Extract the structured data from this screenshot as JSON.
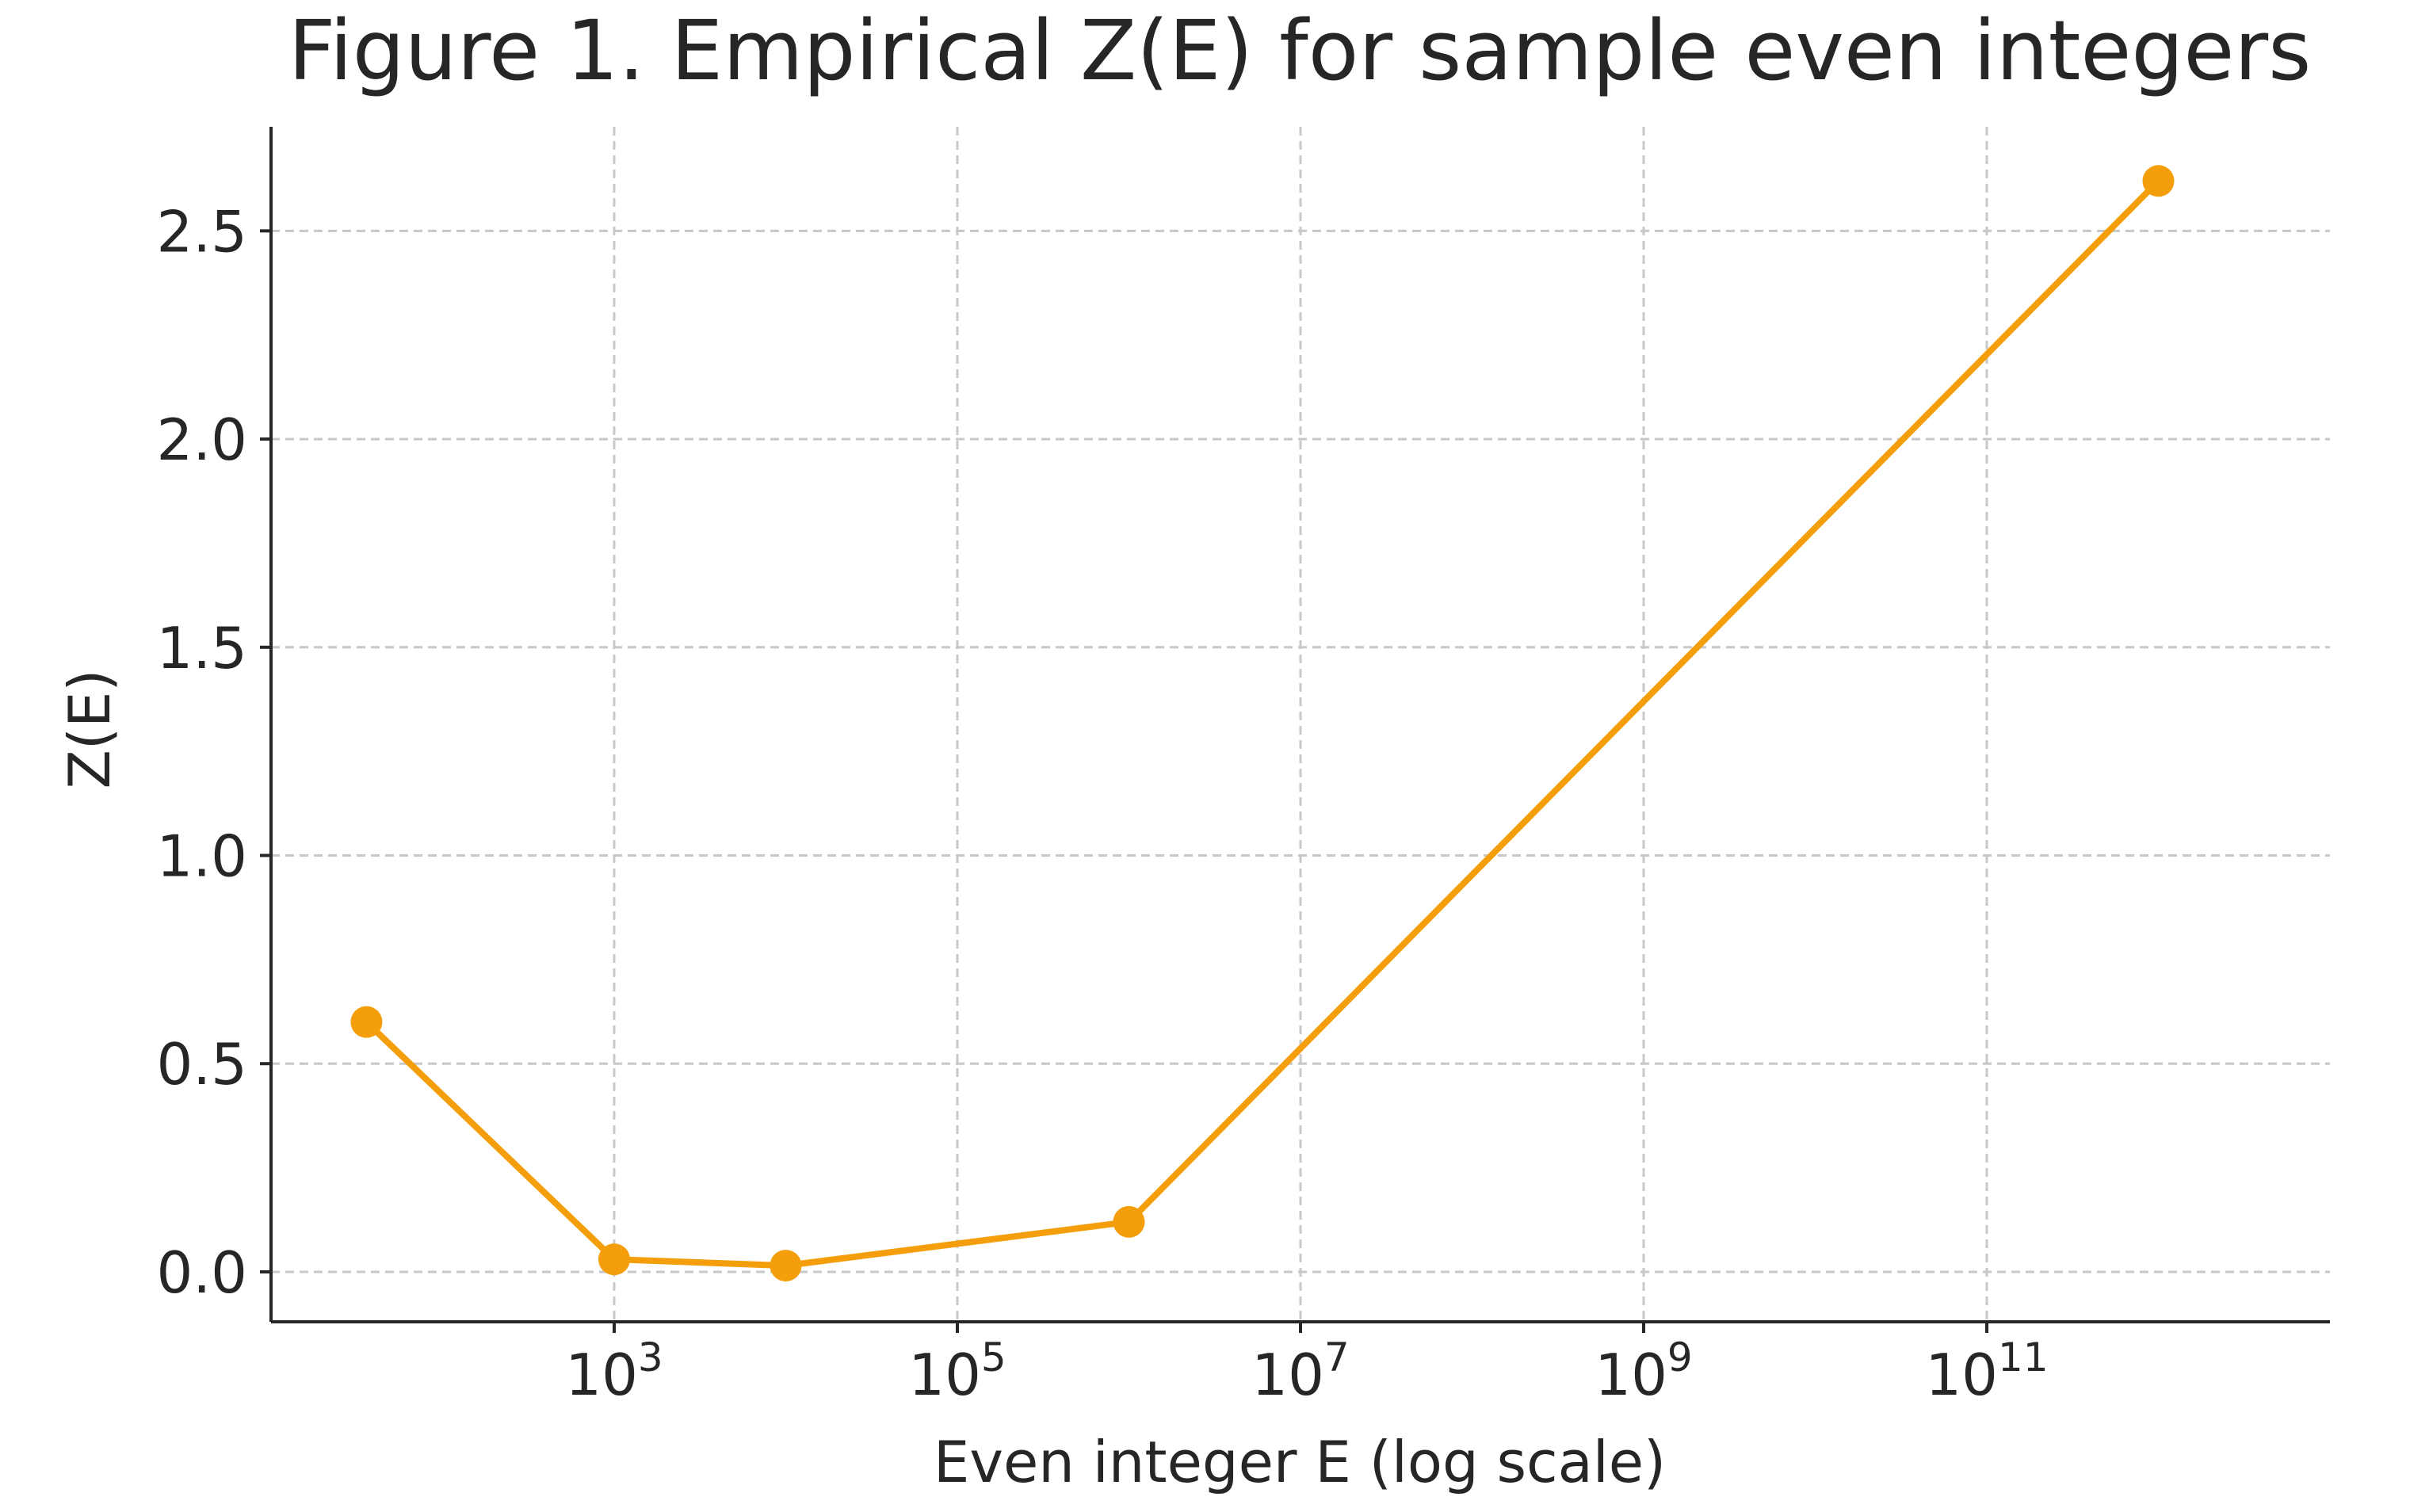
{
  "chart_data": {
    "type": "line",
    "title": "Figure 1. Empirical Z(E) for sample even integers",
    "xlabel": "Even integer E (log scale)",
    "ylabel": "Z(E)",
    "x_scale": "log",
    "xlim": [
      10,
      10000000000000
    ],
    "ylim": [
      -0.12,
      2.75
    ],
    "grid": true,
    "x_ticks": [
      {
        "base": "10",
        "exp": "3",
        "value": 1000
      },
      {
        "base": "10",
        "exp": "5",
        "value": 100000
      },
      {
        "base": "10",
        "exp": "7",
        "value": 10000000
      },
      {
        "base": "10",
        "exp": "9",
        "value": 1000000000
      },
      {
        "base": "10",
        "exp": "11",
        "value": 100000000000
      }
    ],
    "y_ticks": [
      {
        "label": "0.0",
        "value": 0.0
      },
      {
        "label": "0.5",
        "value": 0.5
      },
      {
        "label": "1.0",
        "value": 1.0
      },
      {
        "label": "1.5",
        "value": 1.5
      },
      {
        "label": "2.0",
        "value": 2.0
      },
      {
        "label": "2.5",
        "value": 2.5
      }
    ],
    "series": [
      {
        "color": "#f59e0b",
        "marker": "circle",
        "points": [
          {
            "x": 36,
            "y": 0.6
          },
          {
            "x": 1000,
            "y": 0.03
          },
          {
            "x": 10000,
            "y": 0.015
          },
          {
            "x": 1000000,
            "y": 0.12
          },
          {
            "x": 1000000000000,
            "y": 2.62
          }
        ]
      }
    ]
  }
}
